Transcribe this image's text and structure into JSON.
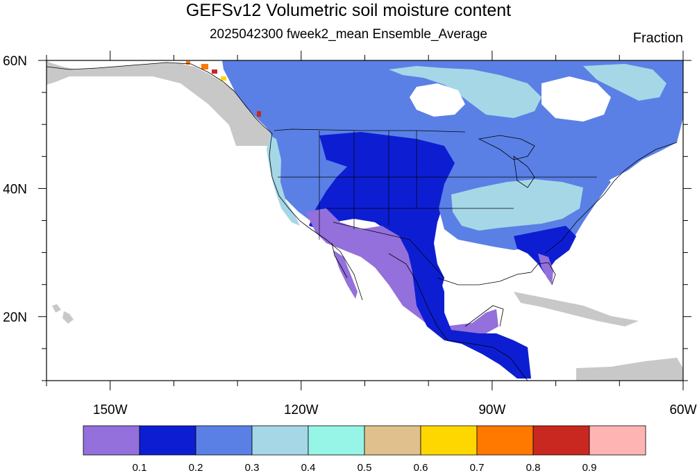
{
  "title": "GEFSv12 Volumetric soil moisture content",
  "subtitle": "2025042300 fweek2_mean Ensemble_Average",
  "units_label": "Fraction",
  "map": {
    "projection": "cylindrical-equidistant",
    "lon_range": [
      -160,
      -60
    ],
    "lat_range": [
      10,
      60
    ],
    "lat_tick_labels": [
      {
        "lat": 60,
        "label": "60N"
      },
      {
        "lat": 40,
        "label": "40N"
      },
      {
        "lat": 20,
        "label": "20N"
      }
    ],
    "lon_tick_labels": [
      {
        "lon": -150,
        "label": "150W"
      },
      {
        "lon": -120,
        "label": "120W"
      },
      {
        "lon": -90,
        "label": "90W"
      },
      {
        "lon": -60,
        "label": "60W"
      }
    ],
    "ocean_color": "#ffffff",
    "missing_land_color": "#c8c8c8",
    "regions": [
      {
        "name": "canada-north",
        "level": "0.2-0.3"
      },
      {
        "name": "hudson-bay-rim",
        "level": "0.3-0.4"
      },
      {
        "name": "great-plains",
        "level": "0.1-0.2"
      },
      {
        "name": "southwest-us",
        "level": "<0.1"
      },
      {
        "name": "mexico-interior",
        "level": "<0.1"
      },
      {
        "name": "ohio-valley",
        "level": "0.3-0.4"
      },
      {
        "name": "southeast-us",
        "level": "0.1-0.2"
      },
      {
        "name": "alaska-panhandle-peaks",
        "level": "0.7-0.9"
      }
    ]
  },
  "colorbar": {
    "colors": [
      "#9370db",
      "#0d1ed2",
      "#5a80e6",
      "#a6d7e6",
      "#96f5e6",
      "#e0c08d",
      "#ffd700",
      "#ff7800",
      "#c82820",
      "#ffb4b4"
    ],
    "labels": [
      "0.1",
      "0.2",
      "0.3",
      "0.4",
      "0.5",
      "0.6",
      "0.7",
      "0.8",
      "0.9"
    ]
  }
}
